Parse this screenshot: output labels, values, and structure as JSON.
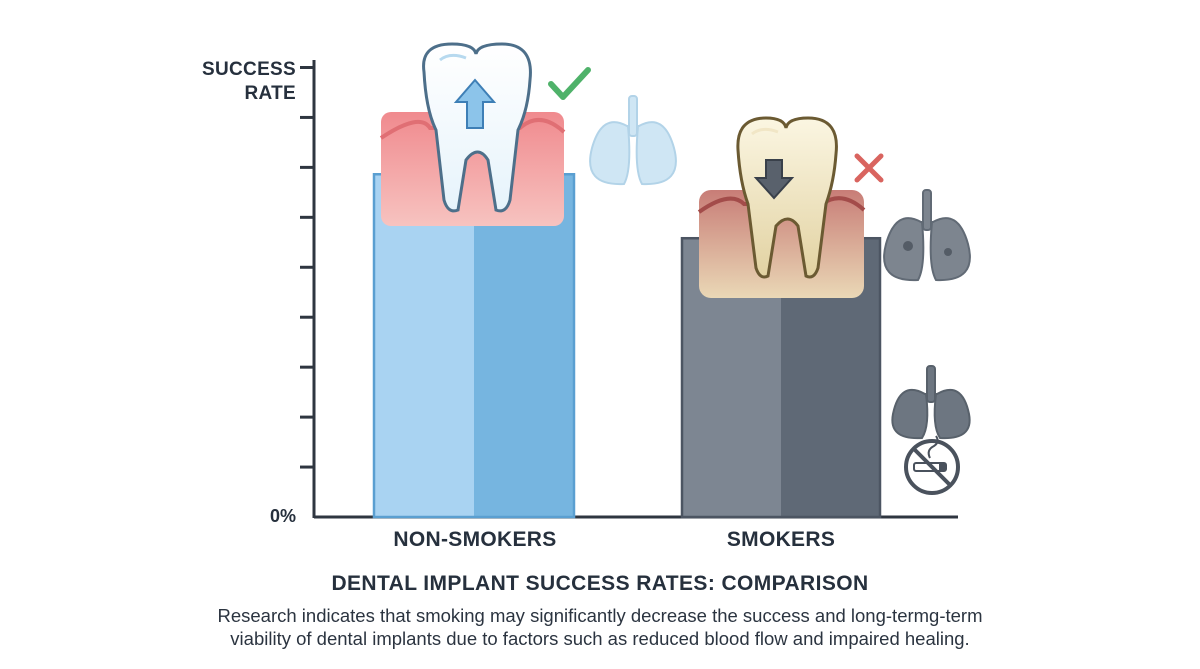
{
  "chart_data": {
    "type": "bar",
    "title": "DENTAL IMPLANT SUCCESS RATES: COMPARISON",
    "ylabel_lines": [
      "SUCCESS",
      "RATE"
    ],
    "y_zero_label": "0%",
    "categories": [
      "NON-SMOKERS",
      "SMOKERS"
    ],
    "values": [
      0.75,
      0.61
    ],
    "value_scale": "fraction of axis height (axis has no numeric tick labels)",
    "ylim": [
      0,
      1
    ],
    "y_ticks": 9,
    "grid": false
  },
  "description_lines": [
    "Research indicates that smoking may significantly decrease the success and long-termg-term",
    "viability of dental implants due to factors such as reduced blood flow and impaired healing."
  ],
  "colors": {
    "non_smoker_bar_light": "#a9d3f2",
    "non_smoker_bar_dark": "#76b5e0",
    "non_smoker_bar_edge": "#5a9fd1",
    "smoker_bar_light": "#7d8692",
    "smoker_bar_dark": "#5f6976",
    "smoker_bar_edge": "#4c5562",
    "axis": "#2f3640",
    "check": "#4fb26a",
    "cross": "#d9645f"
  },
  "icons": {
    "healthy_tooth": "healthy-tooth-icon",
    "unhealthy_tooth": "stained-tooth-icon",
    "healthy_lungs": "healthy-lungs-icon",
    "damaged_lungs": "damaged-lungs-icon",
    "dark_lungs": "dark-lungs-icon",
    "no_smoking": "no-smoking-icon",
    "check": "check-mark-icon",
    "cross": "cross-mark-icon"
  }
}
